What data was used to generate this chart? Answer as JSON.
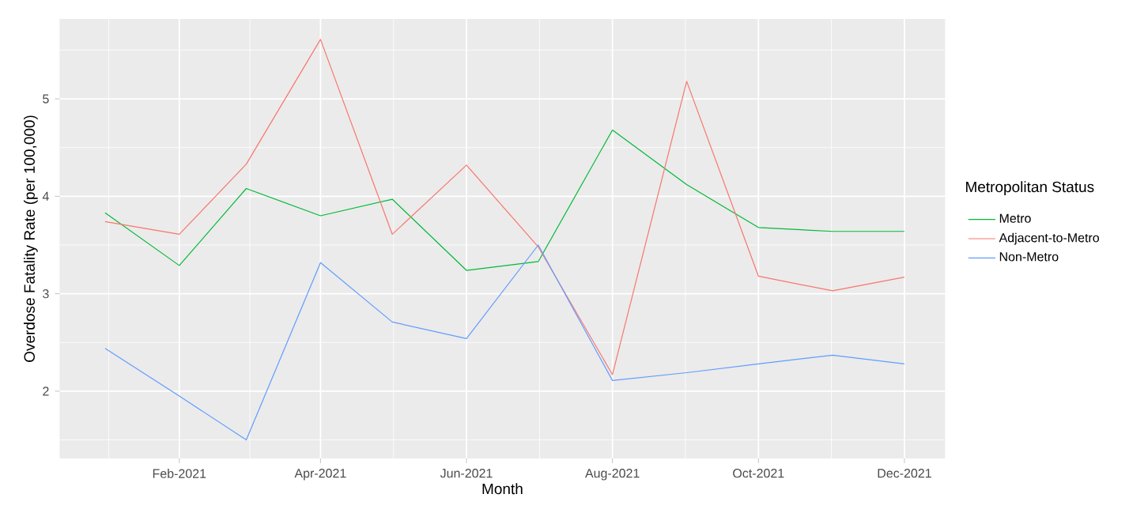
{
  "chart_data": {
    "type": "line",
    "xlabel": "Month",
    "ylabel": "Overdose Fatality Rate (per 100,000)",
    "legend_title": "Metropolitan Status",
    "legend": "right",
    "grid": true,
    "x": [
      "2021-01",
      "2021-02",
      "2021-03",
      "2021-04",
      "2021-05",
      "2021-06",
      "2021-07",
      "2021-08",
      "2021-09",
      "2021-10",
      "2021-11",
      "2021-12"
    ],
    "series": [
      {
        "name": "Metro",
        "color": "#00ba38",
        "values": [
          3.83,
          3.29,
          4.08,
          3.8,
          3.97,
          3.24,
          3.33,
          4.68,
          4.12,
          3.68,
          3.64,
          3.64
        ]
      },
      {
        "name": "Adjacent-to-Metro",
        "color": "#f8766d",
        "values": [
          3.74,
          3.61,
          4.33,
          5.61,
          3.61,
          4.32,
          3.48,
          2.17,
          5.18,
          3.18,
          3.03,
          3.17
        ]
      },
      {
        "name": "Non-Metro",
        "color": "#619cff",
        "values": [
          2.44,
          1.95,
          1.5,
          3.32,
          2.71,
          2.54,
          3.5,
          2.11,
          2.19,
          2.28,
          2.37,
          2.28
        ]
      }
    ],
    "xlim": [
      "2020-12-13",
      "2021-12-18"
    ],
    "xticks": [
      {
        "value": "2021-02",
        "label": "Feb-2021"
      },
      {
        "value": "2021-04",
        "label": "Apr-2021"
      },
      {
        "value": "2021-06",
        "label": "Jun-2021"
      },
      {
        "value": "2021-08",
        "label": "Aug-2021"
      },
      {
        "value": "2021-10",
        "label": "Oct-2021"
      },
      {
        "value": "2021-12",
        "label": "Dec-2021"
      }
    ],
    "ylim": [
      1.31,
      5.82
    ],
    "yticks": [
      2,
      3,
      4,
      5
    ]
  }
}
